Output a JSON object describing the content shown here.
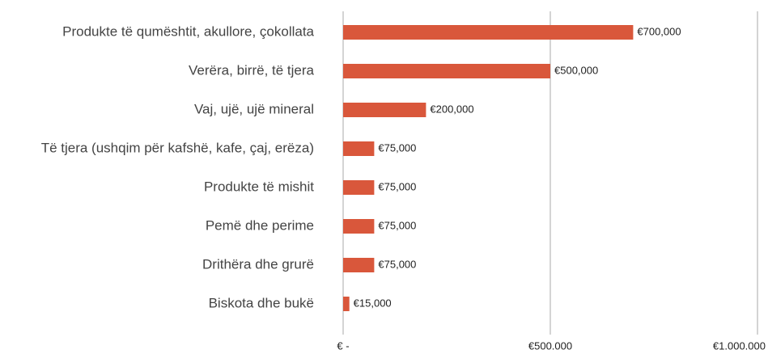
{
  "chart_data": {
    "type": "hbar",
    "categories": [
      "Produkte të qumështit, akullore, çokollata",
      "Verëra, birrë, të tjera",
      "Vaj, ujë, ujë mineral",
      "Të tjera (ushqim për kafshë, kafe, çaj, erëza)",
      "Produkte të mishit",
      "Pemë dhe perime",
      "Drithëra dhe grurë",
      "Biskota dhe bukë"
    ],
    "values": [
      700000,
      500000,
      200000,
      75000,
      75000,
      75000,
      75000,
      15000
    ],
    "value_labels": [
      "€700,000",
      "€500,000",
      "€200,000",
      "€75,000",
      "€75,000",
      "€75,000",
      "€75,000",
      "€15,000"
    ],
    "color": "#d9573b",
    "xlim": [
      0,
      1000000
    ],
    "xticks": [
      {
        "value": 0,
        "label": "€ -"
      },
      {
        "value": 500000,
        "label": "€500.000"
      },
      {
        "value": 1000000,
        "label": "€1.000.000"
      }
    ],
    "grid": true
  }
}
